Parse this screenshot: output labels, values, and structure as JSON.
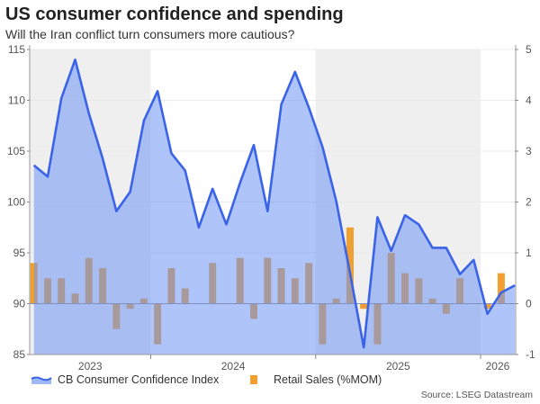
{
  "title": "US consumer confidence and spending",
  "subtitle": "Will the Iran conflict turn consumers more cautious?",
  "source": "Source: LSEG Datastream",
  "chart_data": {
    "type": "area+bar",
    "title": "US consumer confidence and spending",
    "subtitle": "Will the Iran conflict turn consumers more cautious?",
    "x": [
      "2023-04",
      "2023-05",
      "2023-06",
      "2023-07",
      "2023-08",
      "2023-09",
      "2023-10",
      "2023-11",
      "2023-12",
      "2024-01",
      "2024-02",
      "2024-03",
      "2024-04",
      "2024-05",
      "2024-06",
      "2024-07",
      "2024-08",
      "2024-09",
      "2024-10",
      "2024-11",
      "2024-12",
      "2025-01",
      "2025-02",
      "2025-03",
      "2025-04",
      "2025-05",
      "2025-06",
      "2025-07",
      "2025-08",
      "2025-09",
      "2025-10",
      "2025-11",
      "2025-12",
      "2026-01",
      "2026-02",
      "2026-03"
    ],
    "x_tick_labels": [
      "2023",
      "2024",
      "2025",
      "2026"
    ],
    "left_axis": {
      "ylim": [
        85,
        115
      ],
      "ticks": [
        85,
        90,
        95,
        100,
        105,
        110,
        115
      ]
    },
    "right_axis": {
      "ylim": [
        -1,
        5
      ],
      "ticks": [
        -1,
        0,
        1,
        2,
        3,
        4,
        5
      ]
    },
    "shaded_years": [
      "2023",
      "2025"
    ],
    "grid": true,
    "legend_position": "bottom",
    "series": [
      {
        "name": "CB Consumer Confidence Index",
        "type": "area",
        "axis": "left",
        "color": "#3a63e8",
        "fill": "#9fb8f8",
        "values": [
          103.6,
          102.5,
          110.2,
          114.0,
          108.7,
          104.3,
          99.1,
          101.0,
          108.0,
          110.9,
          104.8,
          103.1,
          97.5,
          101.3,
          97.8,
          101.9,
          105.6,
          99.1,
          109.6,
          112.8,
          109.3,
          105.4,
          100.1,
          93.0,
          85.7,
          98.5,
          95.2,
          98.7,
          97.8,
          95.5,
          95.5,
          92.9,
          94.3,
          89.0,
          91.1,
          91.8
        ]
      },
      {
        "name": "Retail Sales (%MOM)",
        "type": "bar",
        "axis": "right",
        "color": "#f0a030",
        "values": [
          0.8,
          0.5,
          0.5,
          0.2,
          0.9,
          0.7,
          -0.5,
          -0.1,
          0.1,
          -0.8,
          0.7,
          0.3,
          0.0,
          0.8,
          0.0,
          0.9,
          -0.3,
          0.9,
          0.7,
          0.5,
          0.8,
          -0.8,
          0.1,
          1.5,
          -0.1,
          -0.8,
          1.0,
          0.6,
          0.5,
          0.1,
          -0.2,
          0.5,
          0.0,
          -0.1,
          0.6,
          null
        ]
      }
    ]
  }
}
